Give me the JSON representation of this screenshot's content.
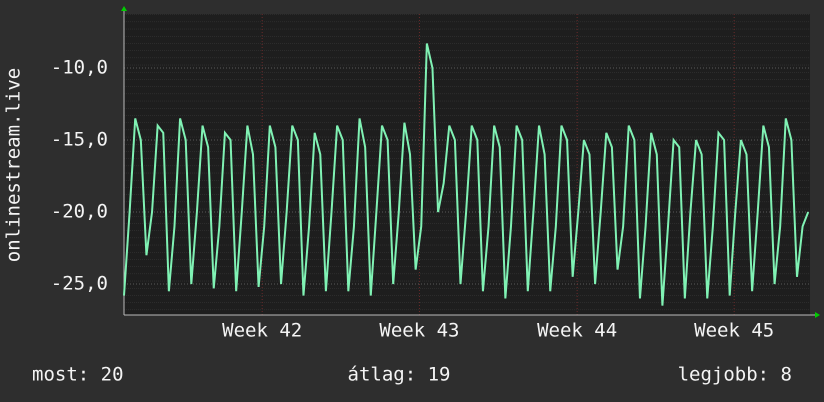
{
  "chart_data": {
    "type": "line",
    "y_label": "onlinestream.live",
    "x": [
      0,
      0.25,
      0.5,
      0.75,
      1,
      1.25,
      1.5,
      1.75,
      2,
      2.25,
      2.5,
      2.75,
      3,
      3.25,
      3.5,
      3.75,
      4,
      4.25,
      4.5,
      4.75,
      5,
      5.25,
      5.5,
      5.75,
      6,
      6.25,
      6.5,
      6.75,
      7,
      7.25,
      7.5,
      7.75,
      8,
      8.25,
      8.5,
      8.75,
      9,
      9.25,
      9.5,
      9.75,
      10,
      10.25,
      10.5,
      10.75,
      11,
      11.25,
      11.5,
      11.75,
      12,
      12.25,
      12.5,
      12.75,
      13,
      13.25,
      13.5,
      13.75,
      14,
      14.25,
      14.5,
      14.75,
      15,
      15.25,
      15.5,
      15.75,
      16,
      16.25,
      16.5,
      16.75,
      17,
      17.25,
      17.5,
      17.75,
      18,
      18.25,
      18.5,
      18.75,
      19,
      19.25,
      19.5,
      19.75,
      20,
      20.25,
      20.5,
      20.75,
      21,
      21.25,
      21.5,
      21.75,
      22,
      22.25,
      22.5,
      22.75,
      23,
      23.25,
      23.5,
      23.75,
      24,
      24.25,
      24.5,
      24.75,
      25,
      25.25,
      25.5,
      25.75,
      26,
      26.25,
      26.5,
      26.75,
      27,
      27.25,
      27.5,
      27.75,
      28,
      28.25,
      28.5,
      28.75,
      29,
      29.25,
      29.5,
      29.75,
      30,
      30.25,
      30.5
    ],
    "series": [
      {
        "color": "#80f2b4",
        "values": [
          -25.8,
          -20,
          -13.5,
          -15,
          -23,
          -20,
          -14,
          -14.5,
          -25.5,
          -21,
          -13.5,
          -15,
          -25,
          -20,
          -14,
          -15.5,
          -25.3,
          -21,
          -14.5,
          -15,
          -25.5,
          -20,
          -14,
          -16,
          -25.2,
          -21,
          -14,
          -15.5,
          -25,
          -20,
          -14,
          -15,
          -25.8,
          -21,
          -14.5,
          -16,
          -25.5,
          -20,
          -14,
          -15,
          -25.5,
          -21,
          -13.5,
          -15.5,
          -25.8,
          -20,
          -14,
          -15,
          -25,
          -20,
          -13.8,
          -16,
          -24,
          -21,
          -8.3,
          -10,
          -20,
          -18,
          -14,
          -15,
          -25,
          -20,
          -14,
          -15,
          -25.5,
          -21,
          -14,
          -15.5,
          -26,
          -21,
          -14,
          -15,
          -25.5,
          -20,
          -14,
          -16,
          -25.5,
          -21,
          -14,
          -15,
          -24.5,
          -20,
          -15,
          -16,
          -25,
          -20,
          -14.5,
          -15.5,
          -24,
          -21,
          -14,
          -15,
          -26,
          -21,
          -14.5,
          -16,
          -26.5,
          -21,
          -15,
          -15.5,
          -26,
          -20,
          -15,
          -16,
          -26,
          -21,
          -14.5,
          -15,
          -25.8,
          -20,
          -15,
          -16,
          -25.5,
          -20,
          -14,
          -15.5,
          -25,
          -21,
          -13.5,
          -15,
          -24.5,
          -21,
          -20
        ]
      }
    ],
    "xlim": [
      0,
      30.58
    ],
    "xticks": [
      {
        "value": 6.16,
        "label": "Week 42"
      },
      {
        "value": 13.17,
        "label": "Week 43"
      },
      {
        "value": 20.2,
        "label": "Week 44"
      },
      {
        "value": 27.2,
        "label": "Week 45"
      }
    ],
    "ylim": [
      -27.15,
      -6.25
    ],
    "yticks": [
      {
        "value": -25,
        "label": "-25,0"
      },
      {
        "value": -20,
        "label": "-20,0"
      },
      {
        "value": -15,
        "label": "-15,0"
      },
      {
        "value": -10,
        "label": "-10,0"
      }
    ],
    "grid": true,
    "footer": [
      "most: 20",
      "átlag: 19",
      "legjobb: 8"
    ]
  }
}
